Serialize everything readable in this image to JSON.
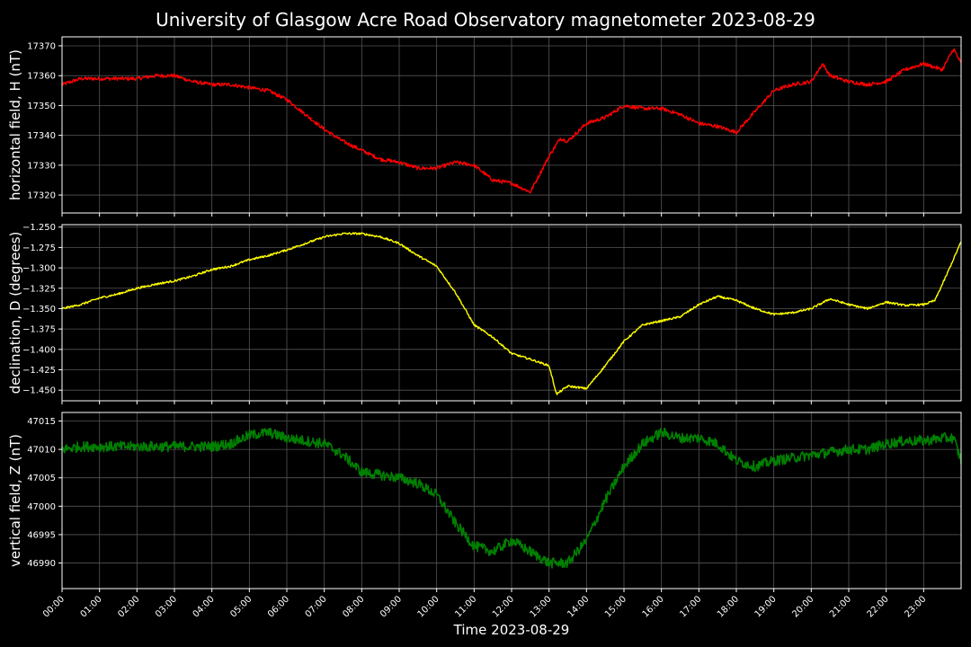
{
  "chart_data": {
    "type": "line",
    "title": "University of Glasgow Acre Road Observatory magnetometer 2023-08-29",
    "xlabel": "Time 2023-08-29",
    "x_ticks": [
      "00:00",
      "01:00",
      "02:00",
      "03:00",
      "04:00",
      "05:00",
      "06:00",
      "07:00",
      "08:00",
      "09:00",
      "10:00",
      "11:00",
      "12:00",
      "13:00",
      "14:00",
      "15:00",
      "16:00",
      "17:00",
      "18:00",
      "19:00",
      "20:00",
      "21:00",
      "22:00",
      "23:00"
    ],
    "x_range_hours": [
      0,
      24
    ],
    "grid": true,
    "panels": [
      {
        "name": "H",
        "ylabel": "horizontal field, H (nT)",
        "color": "#ff0000",
        "ylim": [
          17314,
          17373
        ],
        "yticks": [
          17320,
          17330,
          17340,
          17350,
          17360,
          17370
        ],
        "ytick_labels": [
          "17320",
          "17330",
          "17340",
          "17350",
          "17360",
          "17370"
        ],
        "noise": 0.6,
        "x": [
          0,
          0.5,
          1,
          1.5,
          2,
          2.5,
          3,
          3.5,
          4,
          4.5,
          5,
          5.5,
          6,
          6.5,
          7,
          7.5,
          8,
          8.5,
          9,
          9.5,
          10,
          10.5,
          11,
          11.5,
          12,
          12.5,
          13,
          13.3,
          13.5,
          14,
          14.5,
          15,
          15.5,
          16,
          16.5,
          17,
          17.5,
          18,
          18.5,
          19,
          19.5,
          20,
          20.3,
          20.5,
          21,
          21.5,
          22,
          22.5,
          23,
          23.5,
          23.8,
          24
        ],
        "y": [
          17357,
          17359,
          17359,
          17359,
          17359,
          17360,
          17360,
          17358,
          17357,
          17357,
          17356,
          17355,
          17352,
          17347,
          17342,
          17338,
          17335,
          17332,
          17331,
          17329,
          17329,
          17331,
          17330,
          17325,
          17324,
          17321,
          17333,
          17339,
          17338,
          17344,
          17346,
          17350,
          17349,
          17349,
          17347,
          17344,
          17343,
          17341,
          17348,
          17355,
          17357,
          17358,
          17364,
          17360,
          17358,
          17357,
          17358,
          17362,
          17364,
          17362,
          17369,
          17364
        ]
      },
      {
        "name": "D",
        "ylabel": "declination, D (degrees)",
        "color": "#ffff00",
        "ylim": [
          -1.463,
          -1.247
        ],
        "yticks": [
          -1.45,
          -1.425,
          -1.4,
          -1.375,
          -1.35,
          -1.325,
          -1.3,
          -1.275,
          -1.25
        ],
        "ytick_labels": [
          "−1.450",
          "−1.425",
          "−1.400",
          "−1.375",
          "−1.350",
          "−1.325",
          "−1.300",
          "−1.275",
          "−1.250"
        ],
        "noise": 0.0012,
        "x": [
          0,
          0.5,
          1,
          1.5,
          2,
          2.5,
          3,
          3.5,
          4,
          4.5,
          5,
          5.5,
          6,
          6.5,
          7,
          7.5,
          8,
          8.5,
          9,
          9.5,
          10,
          10.5,
          11,
          11.5,
          12,
          12.5,
          13,
          13.2,
          13.5,
          14,
          14.5,
          15,
          15.5,
          16,
          16.5,
          17,
          17.5,
          18,
          18.5,
          19,
          19.5,
          20,
          20.5,
          21,
          21.5,
          22,
          22.5,
          23,
          23.3,
          23.6,
          24
        ],
        "y": [
          -1.35,
          -1.345,
          -1.337,
          -1.332,
          -1.325,
          -1.32,
          -1.316,
          -1.31,
          -1.302,
          -1.298,
          -1.29,
          -1.285,
          -1.278,
          -1.27,
          -1.262,
          -1.258,
          -1.258,
          -1.262,
          -1.27,
          -1.285,
          -1.298,
          -1.33,
          -1.37,
          -1.385,
          -1.405,
          -1.412,
          -1.42,
          -1.455,
          -1.445,
          -1.448,
          -1.42,
          -1.39,
          -1.37,
          -1.365,
          -1.36,
          -1.345,
          -1.335,
          -1.34,
          -1.35,
          -1.357,
          -1.355,
          -1.35,
          -1.338,
          -1.345,
          -1.35,
          -1.342,
          -1.346,
          -1.345,
          -1.34,
          -1.31,
          -1.268
        ]
      },
      {
        "name": "Z",
        "ylabel": "vertical field, Z (nT)",
        "color": "#008000",
        "ylim": [
          46985.5,
          47016.5
        ],
        "yticks": [
          46990,
          46995,
          47000,
          47005,
          47010,
          47015
        ],
        "ytick_labels": [
          "46990",
          "46995",
          "47000",
          "47005",
          "47010",
          "47015"
        ],
        "noise": 0.9,
        "x": [
          0,
          0.5,
          1,
          1.5,
          2,
          2.5,
          3,
          3.5,
          4,
          4.5,
          5,
          5.5,
          6,
          6.5,
          7,
          7.5,
          8,
          8.5,
          9,
          9.5,
          10,
          10.5,
          11,
          11.5,
          12,
          12.5,
          13,
          13.5,
          14,
          14.5,
          15,
          15.5,
          16,
          16.5,
          17,
          17.5,
          18,
          18.5,
          19,
          19.5,
          20,
          20.5,
          21,
          21.5,
          22,
          22.5,
          23,
          23.5,
          23.8,
          24
        ],
        "y": [
          47010,
          47010.5,
          47010.5,
          47010.5,
          47010.5,
          47010.5,
          47010.5,
          47010.5,
          47010.5,
          47011,
          47012.5,
          47013,
          47012,
          47011.5,
          47011,
          47009,
          47006,
          47005.5,
          47005,
          47004,
          47002,
          46997,
          46993,
          46992,
          46994,
          46992,
          46990,
          46990,
          46994,
          47001,
          47007,
          47011,
          47013,
          47012,
          47012,
          47011,
          47008,
          47007,
          47008,
          47008.5,
          47009,
          47009.5,
          47010,
          47010,
          47011,
          47011.5,
          47011.5,
          47012,
          47012,
          47008
        ]
      }
    ]
  }
}
